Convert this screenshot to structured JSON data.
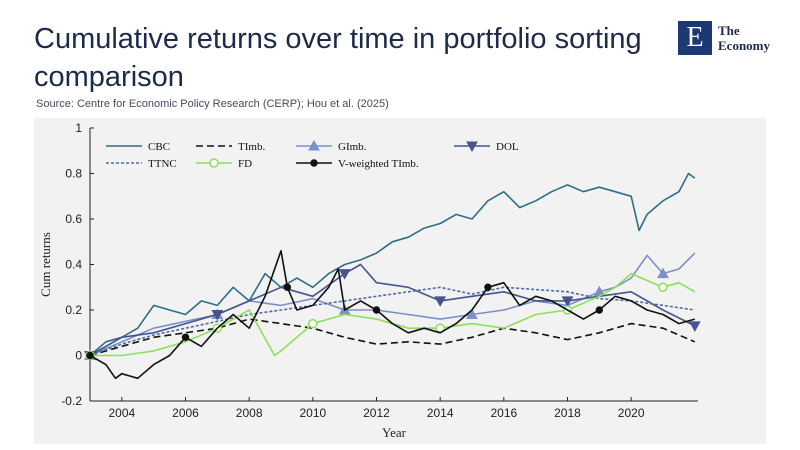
{
  "header": {
    "title": "Cumulative returns over time in portfolio sorting comparison",
    "source": "Source: Centre for Economic Policy Research (CERP); Hou et al. (2025)"
  },
  "logo": {
    "letter": "E",
    "line1": "The",
    "line2": "Economy",
    "icon": "economy-logo-icon"
  },
  "colors": {
    "brand": "#1b3a73",
    "title": "#1c2a4c",
    "panel_bg": "#f2f2f2"
  },
  "chart_data": {
    "type": "line",
    "title": "Cumulative returns over time in portfolio sorting comparison",
    "xlabel": "Year",
    "ylabel": "Cum returns",
    "xlim": [
      2003,
      2022.1
    ],
    "ylim": [
      -0.2,
      1
    ],
    "xticks": [
      2004,
      2006,
      2008,
      2010,
      2012,
      2014,
      2016,
      2018,
      2020
    ],
    "yticks": [
      -0.2,
      0,
      0.2,
      0.4,
      0.6,
      0.8,
      1
    ],
    "legend_position": "top",
    "series": [
      {
        "name": "CBC",
        "color": "#2e6d8a",
        "dash": "",
        "marker": "none",
        "x": [
          2003,
          2003.5,
          2004,
          2004.5,
          2005,
          2005.5,
          2006,
          2006.5,
          2007,
          2007.5,
          2008,
          2008.5,
          2009,
          2009.5,
          2010,
          2010.5,
          2011,
          2011.5,
          2012,
          2012.5,
          2013,
          2013.5,
          2014,
          2014.5,
          2015,
          2015.5,
          2016,
          2016.5,
          2017,
          2017.5,
          2018,
          2018.5,
          2019,
          2019.5,
          2020,
          2020.25,
          2020.5,
          2021,
          2021.5,
          2021.8,
          2022
        ],
        "values": [
          0.0,
          0.06,
          0.08,
          0.12,
          0.22,
          0.2,
          0.18,
          0.24,
          0.22,
          0.3,
          0.24,
          0.36,
          0.3,
          0.34,
          0.3,
          0.36,
          0.4,
          0.42,
          0.45,
          0.5,
          0.52,
          0.56,
          0.58,
          0.62,
          0.6,
          0.68,
          0.72,
          0.65,
          0.68,
          0.72,
          0.75,
          0.72,
          0.74,
          0.72,
          0.7,
          0.55,
          0.62,
          0.68,
          0.72,
          0.8,
          0.78
        ]
      },
      {
        "name": "TImb.",
        "color": "#111111",
        "dash": "7,4",
        "marker": "none",
        "x": [
          2003,
          2004,
          2005,
          2006,
          2007,
          2008,
          2009,
          2010,
          2011,
          2012,
          2013,
          2014,
          2015,
          2016,
          2017,
          2018,
          2019,
          2020,
          2021,
          2022
        ],
        "values": [
          0.0,
          0.04,
          0.08,
          0.1,
          0.12,
          0.16,
          0.14,
          0.12,
          0.08,
          0.05,
          0.06,
          0.05,
          0.08,
          0.12,
          0.1,
          0.07,
          0.1,
          0.14,
          0.12,
          0.06
        ]
      },
      {
        "name": "GImb.",
        "color": "#7d8fc9",
        "dash": "",
        "marker": "triangle-up",
        "x": [
          2003,
          2004,
          2005,
          2006,
          2007,
          2008,
          2009,
          2010,
          2011,
          2012,
          2013,
          2014,
          2015,
          2016,
          2017,
          2018,
          2019,
          2019.5,
          2020,
          2020.5,
          2021,
          2021.5,
          2022
        ],
        "values": [
          0.0,
          0.06,
          0.12,
          0.15,
          0.18,
          0.24,
          0.22,
          0.25,
          0.2,
          0.2,
          0.18,
          0.16,
          0.18,
          0.2,
          0.24,
          0.22,
          0.28,
          0.3,
          0.34,
          0.44,
          0.36,
          0.38,
          0.45
        ]
      },
      {
        "name": "DOL",
        "color": "#45548f",
        "dash": "",
        "marker": "triangle-down",
        "x": [
          2003,
          2004,
          2005,
          2006,
          2007,
          2008,
          2009,
          2010,
          2011,
          2011.5,
          2012,
          2013,
          2014,
          2015,
          2016,
          2017,
          2018,
          2019,
          2020,
          2021,
          2022
        ],
        "values": [
          0.0,
          0.08,
          0.1,
          0.14,
          0.18,
          0.24,
          0.3,
          0.26,
          0.36,
          0.4,
          0.32,
          0.3,
          0.24,
          0.26,
          0.28,
          0.24,
          0.24,
          0.26,
          0.28,
          0.2,
          0.13
        ]
      },
      {
        "name": "TTNC",
        "color": "#4f6aa6",
        "dash": "3,2",
        "marker": "none",
        "x": [
          2003,
          2004,
          2005,
          2006,
          2007,
          2008,
          2009,
          2010,
          2011,
          2012,
          2013,
          2014,
          2015,
          2016,
          2017,
          2018,
          2019,
          2020,
          2021,
          2022
        ],
        "values": [
          0.0,
          0.05,
          0.09,
          0.12,
          0.15,
          0.18,
          0.2,
          0.22,
          0.24,
          0.26,
          0.28,
          0.3,
          0.27,
          0.3,
          0.29,
          0.28,
          0.25,
          0.24,
          0.22,
          0.2
        ]
      },
      {
        "name": "FD",
        "color": "#8be05a",
        "dash": "",
        "marker": "circle-open",
        "x": [
          2003,
          2004,
          2005,
          2006,
          2007,
          2008,
          2008.8,
          2009,
          2010,
          2011,
          2012,
          2013,
          2014,
          2015,
          2016,
          2017,
          2018,
          2019,
          2019.5,
          2020,
          2021,
          2021.5,
          2022
        ],
        "values": [
          0.0,
          0.0,
          0.02,
          0.06,
          0.12,
          0.2,
          0.0,
          0.02,
          0.14,
          0.18,
          0.16,
          0.12,
          0.12,
          0.14,
          0.12,
          0.18,
          0.2,
          0.26,
          0.3,
          0.36,
          0.3,
          0.32,
          0.28
        ]
      },
      {
        "name": "V-weighted TImb.",
        "color": "#111111",
        "dash": "",
        "marker": "circle-filled",
        "x": [
          2003,
          2003.5,
          2003.8,
          2004,
          2004.5,
          2005,
          2005.5,
          2006,
          2006.5,
          2007,
          2007.5,
          2008,
          2008.5,
          2009,
          2009.2,
          2009.5,
          2010,
          2010.5,
          2010.8,
          2011,
          2011.5,
          2012,
          2012.5,
          2013,
          2013.5,
          2014,
          2014.5,
          2015,
          2015.5,
          2016,
          2016.5,
          2017,
          2017.5,
          2018,
          2018.5,
          2019,
          2019.5,
          2020,
          2020.5,
          2021,
          2021.5,
          2022
        ],
        "values": [
          0.0,
          -0.04,
          -0.1,
          -0.08,
          -0.1,
          -0.04,
          0.0,
          0.08,
          0.04,
          0.12,
          0.18,
          0.12,
          0.26,
          0.46,
          0.3,
          0.2,
          0.22,
          0.3,
          0.38,
          0.2,
          0.24,
          0.2,
          0.14,
          0.1,
          0.12,
          0.1,
          0.14,
          0.2,
          0.3,
          0.32,
          0.22,
          0.26,
          0.24,
          0.2,
          0.16,
          0.2,
          0.26,
          0.24,
          0.2,
          0.18,
          0.14,
          0.16
        ]
      }
    ]
  }
}
